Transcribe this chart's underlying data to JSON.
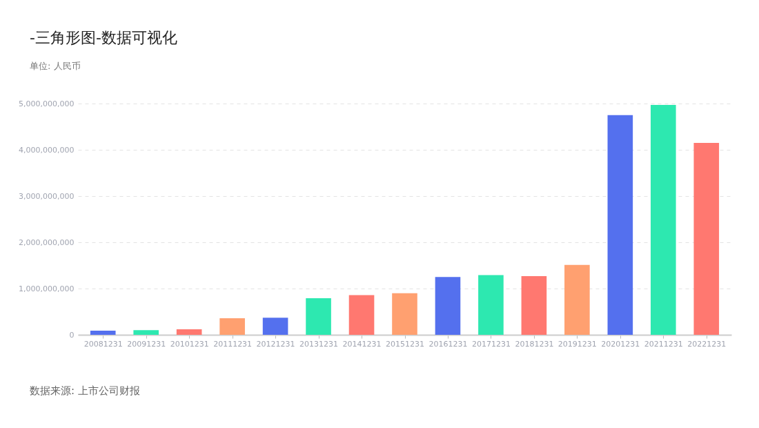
{
  "chart_data": {
    "type": "bar",
    "title": "-三角形图-数据可视化",
    "subtitle": "单位: 人民币",
    "categories": [
      "20081231",
      "20091231",
      "20101231",
      "20111231",
      "20121231",
      "20131231",
      "20141231",
      "20151231",
      "20161231",
      "20171231",
      "20181231",
      "20191231",
      "20201231",
      "20211231",
      "20221231"
    ],
    "values": [
      90000000,
      100000000,
      120000000,
      360000000,
      370000000,
      790000000,
      860000000,
      900000000,
      1250000000,
      1290000000,
      1270000000,
      1510000000,
      4750000000,
      4970000000,
      4150000000
    ],
    "colors": [
      "#5470ee",
      "#2de8b0",
      "#ff7870",
      "#ffa070",
      "#5470ee",
      "#2de8b0",
      "#ff7870",
      "#ffa070",
      "#5470ee",
      "#2de8b0",
      "#ff7870",
      "#ffa070",
      "#5470ee",
      "#2de8b0",
      "#ff7870"
    ],
    "ylim": [
      0,
      5000000000
    ],
    "yticks": [
      {
        "value": 0,
        "label": "0"
      },
      {
        "value": 1000000000,
        "label": "1,000,000,000"
      },
      {
        "value": 2000000000,
        "label": "2,000,000,000"
      },
      {
        "value": 3000000000,
        "label": "3,000,000,000"
      },
      {
        "value": 4000000000,
        "label": "4,000,000,000"
      },
      {
        "value": 5000000000,
        "label": "5,000,000,000"
      }
    ],
    "grid": "y",
    "legend": false,
    "annotations": [
      "数据来源: 上市公司财报"
    ]
  }
}
